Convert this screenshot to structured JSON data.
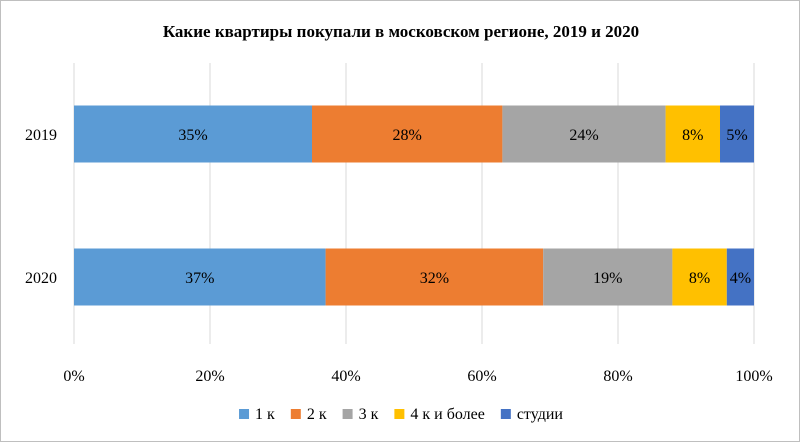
{
  "chart_data": {
    "type": "bar",
    "orientation": "horizontal",
    "stacked": true,
    "percent_stacked": true,
    "title": "Какие квартиры покупали в московском регионе, 2019 и 2020",
    "categories": [
      "2019",
      "2020"
    ],
    "series": [
      {
        "name": "1 к",
        "color": "#5b9bd5",
        "values": [
          35,
          37
        ],
        "labels": [
          "35%",
          "37%"
        ]
      },
      {
        "name": "2 к",
        "color": "#ed7d31",
        "values": [
          28,
          32
        ],
        "labels": [
          "28%",
          "32%"
        ]
      },
      {
        "name": "3 к",
        "color": "#a5a5a5",
        "values": [
          24,
          19
        ],
        "labels": [
          "24%",
          "19%"
        ]
      },
      {
        "name": "4 к и более",
        "color": "#ffc000",
        "values": [
          8,
          8
        ],
        "labels": [
          "8%",
          "8%"
        ]
      },
      {
        "name": "студии",
        "color": "#4472c4",
        "values": [
          5,
          4
        ],
        "labels": [
          "5%",
          "4%"
        ]
      }
    ],
    "x_ticks": [
      "0%",
      "20%",
      "40%",
      "60%",
      "80%",
      "100%"
    ],
    "xlim": [
      0,
      100
    ],
    "grid": "vertical",
    "legend": "bottom"
  }
}
